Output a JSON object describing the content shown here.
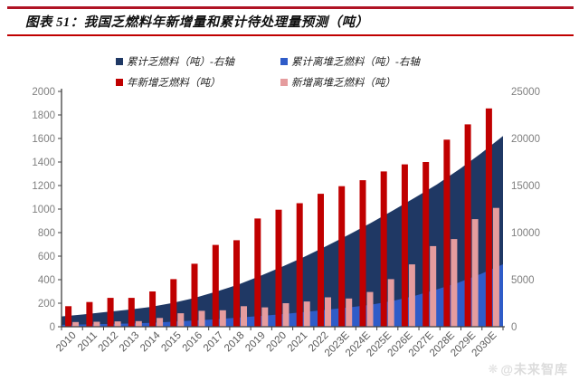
{
  "header": {
    "title": "图表 51：我国乏燃料年新增量和累计待处理量预测（吨）"
  },
  "legend": [
    {
      "label": "累计乏燃料（吨）-右轴",
      "color": "#1f3864"
    },
    {
      "label": "累计离堆乏燃料（吨）-右轴",
      "color": "#2f5cc8"
    },
    {
      "label": "年新增乏燃料（吨）",
      "color": "#c00000"
    },
    {
      "label": "新增离堆乏燃料（吨）",
      "color": "#e59c9e"
    }
  ],
  "watermark": {
    "icon": "❋",
    "text": "@未来智库"
  },
  "chart_data": {
    "type": "combo-area-bar",
    "title": "图表 51：我国乏燃料年新增量和累计待处理量预测（吨）",
    "categories": [
      "2010",
      "2011",
      "2012",
      "2013",
      "2014",
      "2015",
      "2016",
      "2017",
      "2018",
      "2019",
      "2020",
      "2021",
      "2022",
      "2023E",
      "2024E",
      "2025E",
      "2026E",
      "2027E",
      "2028E",
      "2029E",
      "2030E"
    ],
    "series": [
      {
        "name": "累计乏燃料（吨）-右轴",
        "type": "area",
        "axis": "right",
        "color": "#1f3864",
        "values": [
          1100,
          1310,
          1555,
          1800,
          2100,
          2505,
          3040,
          3735,
          4470,
          5390,
          6385,
          7435,
          8565,
          9760,
          11005,
          12325,
          13705,
          15105,
          16695,
          18415,
          20270
        ]
      },
      {
        "name": "累计离堆乏燃料（吨）-右轴",
        "type": "area",
        "axis": "right",
        "color": "#2f5cc8",
        "values": [
          200,
          242,
          287,
          335,
          410,
          525,
          660,
          800,
          975,
          1140,
          1340,
          1555,
          1805,
          2045,
          2340,
          2745,
          3275,
          3960,
          4705,
          5620,
          6630
        ]
      },
      {
        "name": "年新增乏燃料（吨）",
        "type": "bar",
        "axis": "left",
        "color": "#c00000",
        "values": [
          175,
          210,
          245,
          245,
          300,
          405,
          535,
          695,
          735,
          920,
          995,
          1050,
          1130,
          1195,
          1245,
          1320,
          1380,
          1400,
          1590,
          1720,
          1855
        ]
      },
      {
        "name": "新增离堆乏燃料（吨）",
        "type": "bar",
        "axis": "left",
        "color": "#e59c9e",
        "values": [
          40,
          42,
          45,
          48,
          75,
          115,
          135,
          140,
          175,
          165,
          200,
          215,
          250,
          240,
          295,
          405,
          530,
          685,
          745,
          915,
          1010
        ]
      }
    ],
    "left_axis": {
      "min": 0,
      "max": 2000,
      "step": 200,
      "tick_color": "#7f7f7f"
    },
    "right_axis": {
      "min": 0,
      "max": 25000,
      "step": 5000,
      "tick_color": "#7f7f7f"
    },
    "x_label_color": "#595959",
    "axis_line_color": "#404040",
    "grid": false,
    "legend_position": "top"
  }
}
